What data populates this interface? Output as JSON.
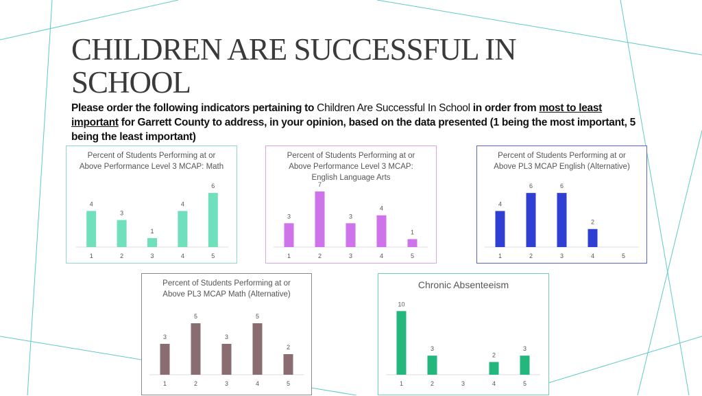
{
  "page": {
    "title": "CHILDREN ARE SUCCESSFUL IN SCHOOL",
    "subtitle": {
      "part1": "Please order the following indicators pertaining to ",
      "part2": "Children Are Successful In School",
      "part3": " in order from ",
      "part4": "most to least important",
      "part5": " for Garrett County to address, in your opinion, based on the data presented (1 being the most important, 5 being the least important)"
    }
  },
  "colors": {
    "math": "#6fe0bb",
    "ela": "#cf73ea",
    "english_alt": "#2f3fd4",
    "math_alt": "#8a6d70",
    "absenteeism": "#23b77e",
    "deco_lines": "#5ec9c9"
  },
  "chart_data": [
    {
      "type": "bar",
      "title": "Percent of Students Performing at or Above Performance Level 3 MCAP: Math",
      "title_lines": [
        "Percent of Students Performing at or",
        "Above Performance Level 3 MCAP: Math"
      ],
      "categories": [
        "1",
        "2",
        "3",
        "4",
        "5"
      ],
      "values": [
        4,
        3,
        1,
        4,
        6
      ],
      "value_labels": [
        "4",
        "3",
        "1",
        "4",
        "6"
      ],
      "ylim": [
        0,
        7
      ],
      "xlabel": "",
      "ylabel": "",
      "grid": false,
      "color": "#6fe0bb",
      "border": "#8fd8cf"
    },
    {
      "type": "bar",
      "title": "Percent of Students Performing at or Above Performance Level 3 MCAP: English Language Arts",
      "title_lines": [
        "Percent of Students Performing at or",
        "Above Performance Level 3 MCAP:",
        "English Language Arts"
      ],
      "categories": [
        "1",
        "2",
        "3",
        "4",
        "5"
      ],
      "values": [
        3,
        7,
        3,
        4,
        1
      ],
      "value_labels": [
        "3",
        "7",
        "3",
        "4",
        "1"
      ],
      "ylim": [
        0,
        7
      ],
      "xlabel": "",
      "ylabel": "",
      "grid": false,
      "color": "#cf73ea",
      "border": "#d9a3ea"
    },
    {
      "type": "bar",
      "title": "Percent of Students Performing at or Above PL3 MCAP English (Alternative)",
      "title_lines": [
        "Percent of Students Performing at or",
        "Above PL3 MCAP English (Alternative)"
      ],
      "categories": [
        "1",
        "2",
        "3",
        "4",
        "5"
      ],
      "values": [
        4,
        6,
        6,
        2,
        0
      ],
      "value_labels": [
        "4",
        "6",
        "6",
        "2",
        ""
      ],
      "ylim": [
        0,
        7
      ],
      "xlabel": "",
      "ylabel": "",
      "grid": false,
      "color": "#2f3fd4",
      "border": "#5a63c8"
    },
    {
      "type": "bar",
      "title": "Percent of Students Performing at or Above PL3 MCAP Math (Alternative)",
      "title_lines": [
        "Percent of Students Performing at or",
        "Above PL3 MCAP Math (Alternative)"
      ],
      "categories": [
        "1",
        "2",
        "3",
        "4",
        "5"
      ],
      "values": [
        3,
        5,
        3,
        5,
        2
      ],
      "value_labels": [
        "3",
        "5",
        "3",
        "5",
        "2"
      ],
      "ylim": [
        0,
        6
      ],
      "xlabel": "",
      "ylabel": "",
      "grid": false,
      "color": "#8a6d70",
      "border": "#8a8a8a"
    },
    {
      "type": "bar",
      "title": "Chronic Absenteeism",
      "title_lines": [
        "Chronic Absenteeism"
      ],
      "categories": [
        "1",
        "2",
        "3",
        "4",
        "5"
      ],
      "values": [
        10,
        3,
        0,
        2,
        3
      ],
      "value_labels": [
        "10",
        "3",
        "",
        "2",
        "3"
      ],
      "ylim": [
        0,
        11
      ],
      "xlabel": "",
      "ylabel": "",
      "grid": false,
      "color": "#23b77e",
      "border": "#6fd3a8"
    }
  ]
}
